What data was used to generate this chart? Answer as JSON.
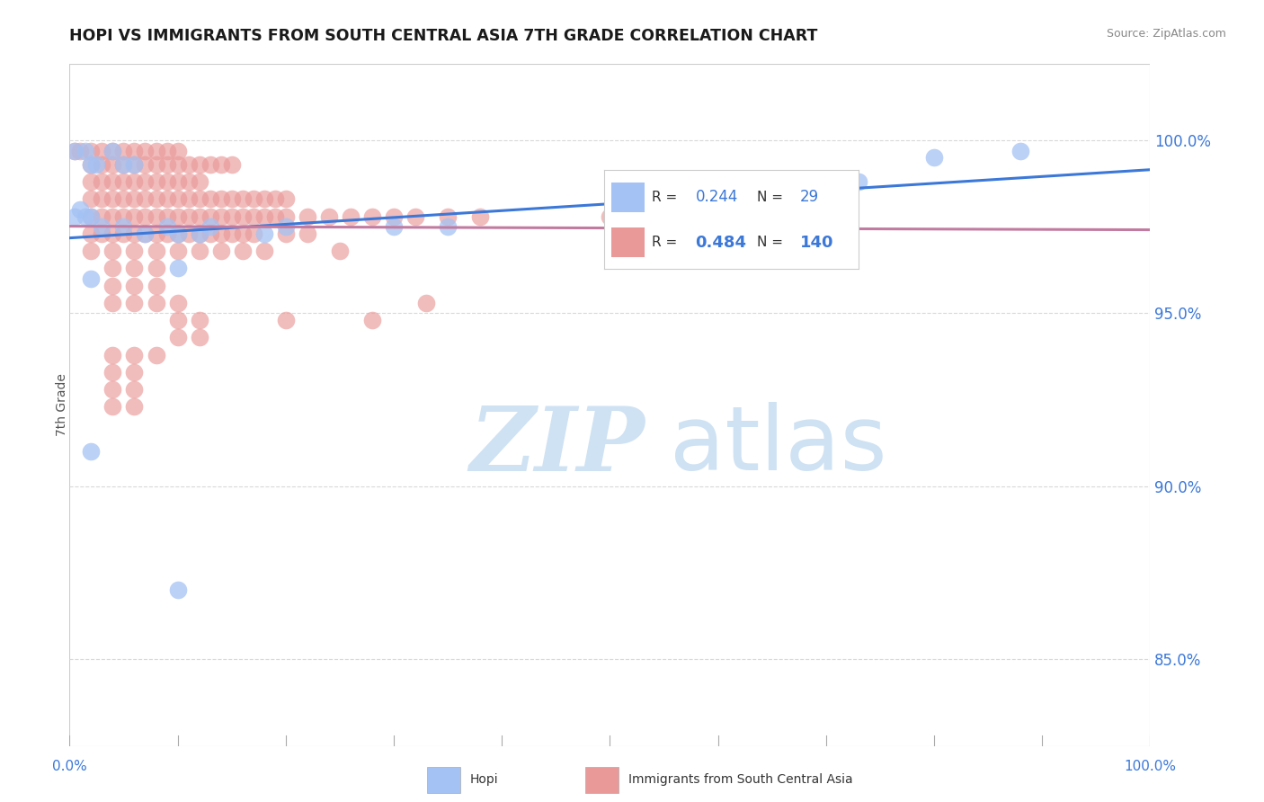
{
  "title": "HOPI VS IMMIGRANTS FROM SOUTH CENTRAL ASIA 7TH GRADE CORRELATION CHART",
  "source": "Source: ZipAtlas.com",
  "ylabel": "7th Grade",
  "ytick_labels": [
    "85.0%",
    "90.0%",
    "95.0%",
    "100.0%"
  ],
  "ytick_values": [
    0.85,
    0.9,
    0.95,
    1.0
  ],
  "xlim": [
    0.0,
    1.0
  ],
  "ylim": [
    0.825,
    1.022
  ],
  "legend_hopi_R": "0.244",
  "legend_hopi_N": "29",
  "legend_immigrants_R": "0.484",
  "legend_immigrants_N": "140",
  "hopi_color": "#a4c2f4",
  "immigrants_color": "#ea9999",
  "hopi_line_color": "#3c78d8",
  "immigrants_line_color": "#c27ba0",
  "background_color": "#ffffff",
  "watermark_zip": "ZIP",
  "watermark_atlas": "atlas",
  "watermark_color": "#cfe2f3",
  "grid_color": "#d9d9d9",
  "tick_color": "#3c78d8",
  "hopi_scatter": [
    [
      0.005,
      0.997
    ],
    [
      0.015,
      0.997
    ],
    [
      0.02,
      0.993
    ],
    [
      0.025,
      0.993
    ],
    [
      0.04,
      0.997
    ],
    [
      0.05,
      0.993
    ],
    [
      0.06,
      0.993
    ],
    [
      0.005,
      0.978
    ],
    [
      0.01,
      0.98
    ],
    [
      0.015,
      0.978
    ],
    [
      0.02,
      0.978
    ],
    [
      0.03,
      0.975
    ],
    [
      0.05,
      0.975
    ],
    [
      0.07,
      0.973
    ],
    [
      0.09,
      0.975
    ],
    [
      0.1,
      0.973
    ],
    [
      0.12,
      0.973
    ],
    [
      0.13,
      0.975
    ],
    [
      0.18,
      0.973
    ],
    [
      0.2,
      0.975
    ],
    [
      0.3,
      0.975
    ],
    [
      0.35,
      0.975
    ],
    [
      0.02,
      0.96
    ],
    [
      0.1,
      0.963
    ],
    [
      0.02,
      0.91
    ],
    [
      0.1,
      0.87
    ],
    [
      0.62,
      0.978
    ],
    [
      0.73,
      0.988
    ],
    [
      0.8,
      0.995
    ],
    [
      0.88,
      0.997
    ]
  ],
  "immigrants_scatter": [
    [
      0.005,
      0.997
    ],
    [
      0.01,
      0.997
    ],
    [
      0.02,
      0.997
    ],
    [
      0.03,
      0.997
    ],
    [
      0.04,
      0.997
    ],
    [
      0.05,
      0.997
    ],
    [
      0.06,
      0.997
    ],
    [
      0.07,
      0.997
    ],
    [
      0.08,
      0.997
    ],
    [
      0.09,
      0.997
    ],
    [
      0.1,
      0.997
    ],
    [
      0.02,
      0.993
    ],
    [
      0.03,
      0.993
    ],
    [
      0.04,
      0.993
    ],
    [
      0.05,
      0.993
    ],
    [
      0.06,
      0.993
    ],
    [
      0.07,
      0.993
    ],
    [
      0.08,
      0.993
    ],
    [
      0.09,
      0.993
    ],
    [
      0.1,
      0.993
    ],
    [
      0.11,
      0.993
    ],
    [
      0.12,
      0.993
    ],
    [
      0.13,
      0.993
    ],
    [
      0.14,
      0.993
    ],
    [
      0.15,
      0.993
    ],
    [
      0.02,
      0.988
    ],
    [
      0.03,
      0.988
    ],
    [
      0.04,
      0.988
    ],
    [
      0.05,
      0.988
    ],
    [
      0.06,
      0.988
    ],
    [
      0.07,
      0.988
    ],
    [
      0.08,
      0.988
    ],
    [
      0.09,
      0.988
    ],
    [
      0.1,
      0.988
    ],
    [
      0.11,
      0.988
    ],
    [
      0.12,
      0.988
    ],
    [
      0.02,
      0.983
    ],
    [
      0.03,
      0.983
    ],
    [
      0.04,
      0.983
    ],
    [
      0.05,
      0.983
    ],
    [
      0.06,
      0.983
    ],
    [
      0.07,
      0.983
    ],
    [
      0.08,
      0.983
    ],
    [
      0.09,
      0.983
    ],
    [
      0.1,
      0.983
    ],
    [
      0.11,
      0.983
    ],
    [
      0.12,
      0.983
    ],
    [
      0.13,
      0.983
    ],
    [
      0.14,
      0.983
    ],
    [
      0.15,
      0.983
    ],
    [
      0.16,
      0.983
    ],
    [
      0.17,
      0.983
    ],
    [
      0.18,
      0.983
    ],
    [
      0.19,
      0.983
    ],
    [
      0.2,
      0.983
    ],
    [
      0.02,
      0.978
    ],
    [
      0.03,
      0.978
    ],
    [
      0.04,
      0.978
    ],
    [
      0.05,
      0.978
    ],
    [
      0.06,
      0.978
    ],
    [
      0.07,
      0.978
    ],
    [
      0.08,
      0.978
    ],
    [
      0.09,
      0.978
    ],
    [
      0.1,
      0.978
    ],
    [
      0.11,
      0.978
    ],
    [
      0.12,
      0.978
    ],
    [
      0.13,
      0.978
    ],
    [
      0.14,
      0.978
    ],
    [
      0.15,
      0.978
    ],
    [
      0.16,
      0.978
    ],
    [
      0.17,
      0.978
    ],
    [
      0.18,
      0.978
    ],
    [
      0.19,
      0.978
    ],
    [
      0.2,
      0.978
    ],
    [
      0.22,
      0.978
    ],
    [
      0.24,
      0.978
    ],
    [
      0.26,
      0.978
    ],
    [
      0.28,
      0.978
    ],
    [
      0.3,
      0.978
    ],
    [
      0.32,
      0.978
    ],
    [
      0.35,
      0.978
    ],
    [
      0.38,
      0.978
    ],
    [
      0.02,
      0.973
    ],
    [
      0.03,
      0.973
    ],
    [
      0.04,
      0.973
    ],
    [
      0.05,
      0.973
    ],
    [
      0.06,
      0.973
    ],
    [
      0.07,
      0.973
    ],
    [
      0.08,
      0.973
    ],
    [
      0.09,
      0.973
    ],
    [
      0.1,
      0.973
    ],
    [
      0.11,
      0.973
    ],
    [
      0.12,
      0.973
    ],
    [
      0.13,
      0.973
    ],
    [
      0.14,
      0.973
    ],
    [
      0.15,
      0.973
    ],
    [
      0.16,
      0.973
    ],
    [
      0.17,
      0.973
    ],
    [
      0.2,
      0.973
    ],
    [
      0.22,
      0.973
    ],
    [
      0.02,
      0.968
    ],
    [
      0.04,
      0.968
    ],
    [
      0.06,
      0.968
    ],
    [
      0.08,
      0.968
    ],
    [
      0.1,
      0.968
    ],
    [
      0.12,
      0.968
    ],
    [
      0.14,
      0.968
    ],
    [
      0.16,
      0.968
    ],
    [
      0.18,
      0.968
    ],
    [
      0.25,
      0.968
    ],
    [
      0.04,
      0.963
    ],
    [
      0.06,
      0.963
    ],
    [
      0.08,
      0.963
    ],
    [
      0.04,
      0.958
    ],
    [
      0.06,
      0.958
    ],
    [
      0.08,
      0.958
    ],
    [
      0.04,
      0.953
    ],
    [
      0.06,
      0.953
    ],
    [
      0.08,
      0.953
    ],
    [
      0.1,
      0.953
    ],
    [
      0.1,
      0.948
    ],
    [
      0.12,
      0.948
    ],
    [
      0.1,
      0.943
    ],
    [
      0.12,
      0.943
    ],
    [
      0.04,
      0.938
    ],
    [
      0.06,
      0.938
    ],
    [
      0.08,
      0.938
    ],
    [
      0.04,
      0.933
    ],
    [
      0.06,
      0.933
    ],
    [
      0.04,
      0.928
    ],
    [
      0.06,
      0.928
    ],
    [
      0.04,
      0.923
    ],
    [
      0.06,
      0.923
    ],
    [
      0.2,
      0.948
    ],
    [
      0.28,
      0.948
    ],
    [
      0.33,
      0.953
    ],
    [
      0.5,
      0.978
    ],
    [
      0.6,
      0.978
    ]
  ]
}
